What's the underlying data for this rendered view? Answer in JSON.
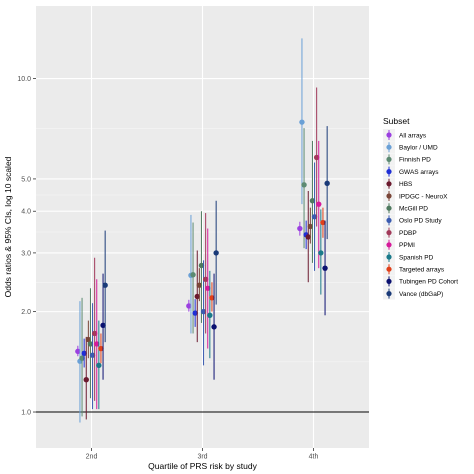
{
  "chart_data": {
    "type": "scatter",
    "scale_y": "log10",
    "ylabel": "Odds ratios & 95% CIs, log 10 scaled",
    "xlabel": "Quartile of PRS risk by study",
    "categories": [
      "2nd",
      "3rd",
      "4th"
    ],
    "y_ticks": [
      1.0,
      2.0,
      3.0,
      4.0,
      5.0,
      10.0
    ],
    "y_tick_labels": [
      "1.0",
      "2.0",
      "3.0",
      "4.0",
      "5.0",
      "10.0"
    ],
    "ylim": [
      0.78,
      16.5
    ],
    "reference_line": 1.0,
    "grid": true,
    "legend": {
      "title": "Subset",
      "placement": "right"
    },
    "series": [
      {
        "name": "All arrays",
        "color": "#9b3fe0",
        "points": [
          {
            "x": "2nd",
            "y": 1.52,
            "lo": 1.47,
            "hi": 1.58
          },
          {
            "x": "3rd",
            "y": 2.08,
            "lo": 2.0,
            "hi": 2.17
          },
          {
            "x": "4th",
            "y": 3.55,
            "lo": 3.38,
            "hi": 3.72
          }
        ]
      },
      {
        "name": "Baylor / UMD",
        "color": "#6aa0d6",
        "points": [
          {
            "x": "2nd",
            "y": 1.42,
            "lo": 0.93,
            "hi": 2.15
          },
          {
            "x": "3rd",
            "y": 2.57,
            "lo": 1.72,
            "hi": 3.9
          },
          {
            "x": "4th",
            "y": 7.4,
            "lo": 4.2,
            "hi": 13.2
          }
        ]
      },
      {
        "name": "Finnish PD",
        "color": "#5c8a72",
        "points": [
          {
            "x": "2nd",
            "y": 1.45,
            "lo": 0.97,
            "hi": 2.2
          },
          {
            "x": "3rd",
            "y": 2.58,
            "lo": 1.72,
            "hi": 3.7
          },
          {
            "x": "4th",
            "y": 4.8,
            "lo": 3.1,
            "hi": 7.1
          }
        ]
      },
      {
        "name": "GWAS arrays",
        "color": "#1f2fd6",
        "points": [
          {
            "x": "2nd",
            "y": 1.5,
            "lo": 1.36,
            "hi": 1.66
          },
          {
            "x": "3rd",
            "y": 1.98,
            "lo": 1.8,
            "hi": 2.18
          },
          {
            "x": "4th",
            "y": 3.4,
            "lo": 3.08,
            "hi": 3.75
          }
        ]
      },
      {
        "name": "HBS",
        "color": "#6b1a2e",
        "points": [
          {
            "x": "2nd",
            "y": 1.25,
            "lo": 0.95,
            "hi": 1.68
          },
          {
            "x": "3rd",
            "y": 2.22,
            "lo": 1.62,
            "hi": 3.05
          },
          {
            "x": "4th",
            "y": 3.35,
            "lo": 2.45,
            "hi": 4.6
          }
        ]
      },
      {
        "name": "IPDGC - NeuroX",
        "color": "#7a4638",
        "points": [
          {
            "x": "2nd",
            "y": 1.65,
            "lo": 1.45,
            "hi": 1.88
          },
          {
            "x": "3rd",
            "y": 2.4,
            "lo": 2.15,
            "hi": 2.7
          },
          {
            "x": "4th",
            "y": 3.6,
            "lo": 3.2,
            "hi": 4.1
          }
        ]
      },
      {
        "name": "McGill PD",
        "color": "#4f7a5f",
        "points": [
          {
            "x": "2nd",
            "y": 1.6,
            "lo": 1.1,
            "hi": 2.35
          },
          {
            "x": "3rd",
            "y": 2.75,
            "lo": 1.85,
            "hi": 4.0
          },
          {
            "x": "4th",
            "y": 4.3,
            "lo": 2.8,
            "hi": 6.5
          }
        ]
      },
      {
        "name": "Oslo PD Study",
        "color": "#3b5bb0",
        "points": [
          {
            "x": "2nd",
            "y": 1.48,
            "lo": 1.02,
            "hi": 2.12
          },
          {
            "x": "3rd",
            "y": 2.0,
            "lo": 1.38,
            "hi": 2.85
          },
          {
            "x": "4th",
            "y": 3.85,
            "lo": 2.65,
            "hi": 5.6
          }
        ]
      },
      {
        "name": "PDBP",
        "color": "#a23a5a",
        "points": [
          {
            "x": "2nd",
            "y": 1.72,
            "lo": 1.08,
            "hi": 2.9
          },
          {
            "x": "3rd",
            "y": 2.5,
            "lo": 1.72,
            "hi": 3.95
          },
          {
            "x": "4th",
            "y": 5.8,
            "lo": 3.6,
            "hi": 9.4
          }
        ]
      },
      {
        "name": "PPMI",
        "color": "#d61a9a",
        "points": [
          {
            "x": "2nd",
            "y": 1.6,
            "lo": 1.02,
            "hi": 2.5
          },
          {
            "x": "3rd",
            "y": 2.35,
            "lo": 1.55,
            "hi": 3.55
          },
          {
            "x": "4th",
            "y": 4.2,
            "lo": 2.7,
            "hi": 6.5
          }
        ]
      },
      {
        "name": "Spanish PD",
        "color": "#1a7a8a",
        "points": [
          {
            "x": "2nd",
            "y": 1.38,
            "lo": 1.02,
            "hi": 1.88
          },
          {
            "x": "3rd",
            "y": 1.95,
            "lo": 1.45,
            "hi": 2.65
          },
          {
            "x": "4th",
            "y": 3.0,
            "lo": 2.25,
            "hi": 4.05
          }
        ]
      },
      {
        "name": "Targeted arrays",
        "color": "#e0401a",
        "points": [
          {
            "x": "2nd",
            "y": 1.55,
            "lo": 1.4,
            "hi": 1.72
          },
          {
            "x": "3rd",
            "y": 2.2,
            "lo": 2.0,
            "hi": 2.45
          },
          {
            "x": "4th",
            "y": 3.7,
            "lo": 3.33,
            "hi": 4.1
          }
        ]
      },
      {
        "name": "Tubingen PD Cohort",
        "color": "#0a1070",
        "points": [
          {
            "x": "2nd",
            "y": 1.82,
            "lo": 1.25,
            "hi": 2.6
          },
          {
            "x": "3rd",
            "y": 1.8,
            "lo": 1.25,
            "hi": 2.6
          },
          {
            "x": "4th",
            "y": 2.7,
            "lo": 1.95,
            "hi": 3.75
          }
        ]
      },
      {
        "name": "Vance (dbGaP)",
        "color": "#1a3a78",
        "points": [
          {
            "x": "2nd",
            "y": 2.4,
            "lo": 1.62,
            "hi": 3.5
          },
          {
            "x": "3rd",
            "y": 3.0,
            "lo": 2.1,
            "hi": 4.3
          },
          {
            "x": "4th",
            "y": 4.85,
            "lo": 3.3,
            "hi": 7.2
          }
        ]
      }
    ]
  }
}
